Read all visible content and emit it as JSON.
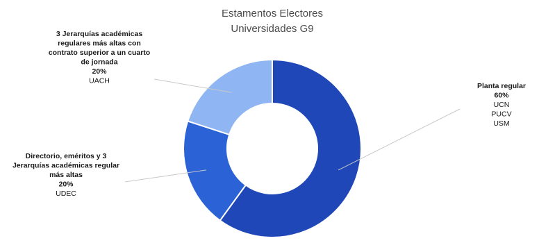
{
  "chart_data": {
    "type": "pie",
    "donut": true,
    "title_lines": [
      "Estamentos Electores",
      "Universidades G9"
    ],
    "slices": [
      {
        "label_lines": [
          "Planta regular"
        ],
        "percent_label": "60%",
        "value": 60,
        "universities": [
          "UCN",
          "PUCV",
          "USM"
        ],
        "color": "#1f47b8"
      },
      {
        "label_lines": [
          "Directorio, eméritos y 3",
          "Jerarquías académicas regular",
          "más altas"
        ],
        "percent_label": "20%",
        "value": 20,
        "universities": [
          "UDEC"
        ],
        "color": "#2b63d6"
      },
      {
        "label_lines": [
          "3 Jerarquías académicas",
          "regulares más altas con",
          "contrato superior a un cuarto",
          "de jornada"
        ],
        "percent_label": "20%",
        "value": 20,
        "universities": [
          "UACH"
        ],
        "color": "#8fb6f2"
      }
    ],
    "legend": "none"
  }
}
